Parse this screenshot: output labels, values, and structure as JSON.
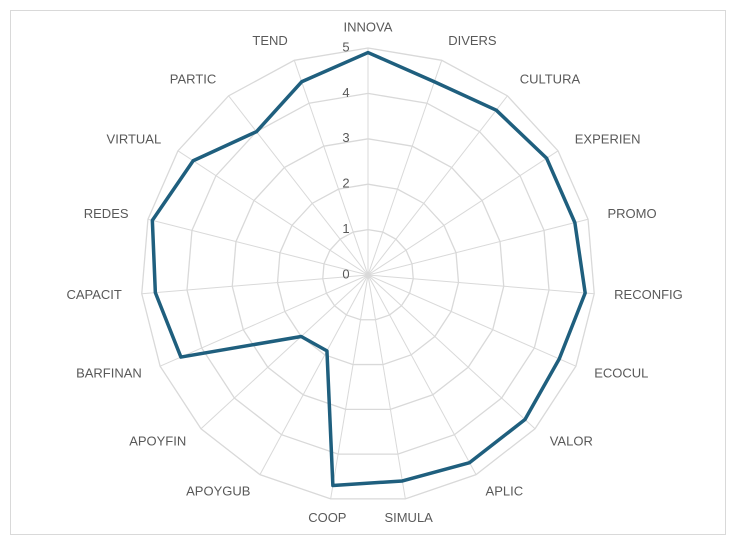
{
  "chart_data": {
    "type": "radar",
    "categories": [
      "INNOVA",
      "DIVERS",
      "CULTURA",
      "EXPERIEN",
      "PROMO",
      "RECONFIG",
      "ECOCUL",
      "VALOR",
      "APLIC",
      "SIMULA",
      "COOP",
      "APOYGUB",
      "APOYFIN",
      "BARFINAN",
      "CAPACIT",
      "REDES",
      "VIRTUAL",
      "PARTIC",
      "TEND"
    ],
    "series": [
      {
        "name": null,
        "color": "#1f5f7e",
        "values": [
          4.9,
          4.5,
          4.6,
          4.7,
          4.7,
          4.8,
          4.6,
          4.7,
          4.7,
          4.6,
          4.7,
          1.9,
          2.0,
          4.5,
          4.7,
          4.9,
          4.6,
          4.0,
          4.5
        ]
      }
    ],
    "ylim": [
      0,
      5
    ],
    "yticks": [
      0,
      1,
      2,
      3,
      4,
      5
    ],
    "grid": true
  }
}
